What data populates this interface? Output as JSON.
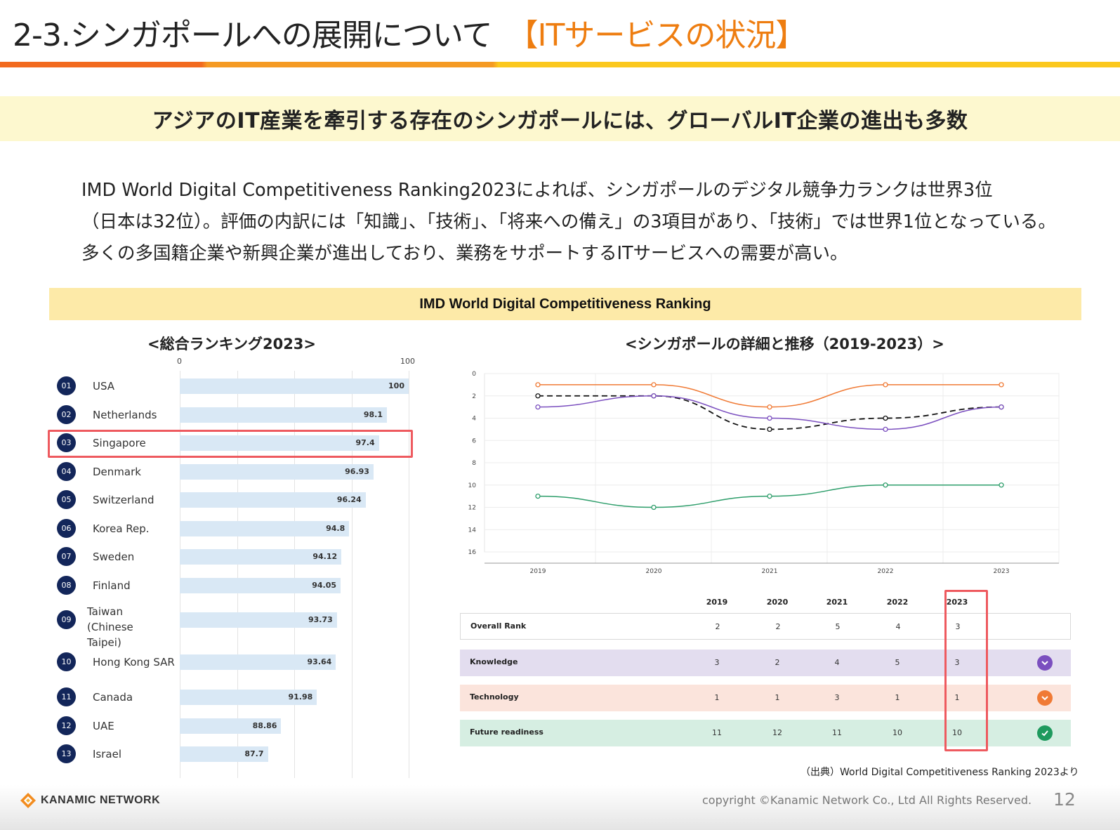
{
  "header": {
    "title": "2-3.シンガポールへの展開について",
    "title_accent": "【ITサービスの状況】"
  },
  "banner": {
    "text": "アジアのIT産業を牽引する存在のシンガポールには、グローバルIT企業の進出も多数"
  },
  "paragraph": {
    "lines": [
      "IMD World Digital Competitiveness Ranking2023によれば、シンガポールのデジタル競争力ランクは世界3位",
      "（日本は32位）。評価の内訳には「知識」、「技術」、「将来への備え」の3項目があり、「技術」では世界1位となっている。",
      "多くの多国籍企業や新興企業が進出しており、業務をサポートするITサービスへの需要が高い。"
    ]
  },
  "ranking_section": {
    "heading": "IMD World Digital Competitiveness Ranking",
    "left_title": "<総合ランキング2023>",
    "right_title": "<シンガポールの詳細と推移（2019-2023）>"
  },
  "chart_data": [
    {
      "type": "bar",
      "title": "<総合ランキング2023>",
      "xlim": [
        0,
        100
      ],
      "axis_labels": [
        "0",
        "100"
      ],
      "categories": [
        "USA",
        "Netherlands",
        "Singapore",
        "Denmark",
        "Switzerland",
        "Korea Rep.",
        "Sweden",
        "Finland",
        "Taiwan (Chinese Taipei)",
        "Hong Kong SAR",
        "Canada",
        "UAE",
        "Israel"
      ],
      "ranks": [
        "01",
        "02",
        "03",
        "04",
        "05",
        "06",
        "07",
        "08",
        "09",
        "10",
        "11",
        "12",
        "13"
      ],
      "values": [
        100,
        98.1,
        97.4,
        96.93,
        96.24,
        94.8,
        94.12,
        94.05,
        93.73,
        93.64,
        91.98,
        88.86,
        87.7
      ],
      "value_labels": [
        "100",
        "98.1",
        "97.4",
        "96.93",
        "96.24",
        "94.8",
        "94.12",
        "94.05",
        "93.73",
        "93.64",
        "91.98",
        "88.86",
        "87.7"
      ],
      "highlight": "Singapore"
    },
    {
      "type": "line",
      "title": "<シンガポールの詳細と推移（2019-2023）>",
      "x": [
        "2019",
        "2020",
        "2021",
        "2022",
        "2023"
      ],
      "ylim": [
        0,
        16
      ],
      "y_inverted": true,
      "y_ticks": [
        "0",
        "2",
        "4",
        "6",
        "8",
        "10",
        "12",
        "14",
        "16"
      ],
      "series": [
        {
          "name": "Overall Rank",
          "values": [
            2,
            2,
            5,
            4,
            3
          ],
          "color": "#111111",
          "dashed": true
        },
        {
          "name": "Knowledge",
          "values": [
            3,
            2,
            4,
            5,
            3
          ],
          "color": "#7b4fbf"
        },
        {
          "name": "Technology",
          "values": [
            1,
            1,
            3,
            1,
            1
          ],
          "color": "#f07a35"
        },
        {
          "name": "Future readiness",
          "values": [
            11,
            12,
            11,
            10,
            10
          ],
          "color": "#2e9e6b"
        }
      ]
    },
    {
      "type": "table",
      "columns": [
        "2019",
        "2020",
        "2021",
        "2022",
        "2023"
      ],
      "rows": [
        {
          "label": "Overall Rank",
          "values": [
            "2",
            "2",
            "5",
            "4",
            "3"
          ],
          "bg": "#ffffff",
          "icon": "",
          "icon_color": ""
        },
        {
          "label": "Knowledge",
          "values": [
            "3",
            "2",
            "4",
            "5",
            "3"
          ],
          "bg": "#e3ddef",
          "icon": "chevron-down-icon",
          "icon_color": "#7b4fbf"
        },
        {
          "label": "Technology",
          "values": [
            "1",
            "1",
            "3",
            "1",
            "1"
          ],
          "bg": "#fbe4dc",
          "icon": "chevron-down-icon",
          "icon_color": "#f07a35"
        },
        {
          "label": "Future readiness",
          "values": [
            "11",
            "12",
            "11",
            "10",
            "10"
          ],
          "bg": "#d6eee2",
          "icon": "check-icon",
          "icon_color": "#1f9a5e"
        }
      ],
      "highlight_column": "2023"
    }
  ],
  "source_note": "（出典）World Digital Competitiveness Ranking 2023より",
  "footer": {
    "logo_text": "KANAMIC NETWORK",
    "copyright": "copyright ©Kanamic Network Co., Ltd All Rights Reserved.",
    "page_number": "12"
  },
  "colors": {
    "accent": "#ee7d10",
    "highlight_border": "#ee5a5f",
    "rank_badge": "#13265a",
    "bar_fill": "#d9e8f5",
    "banner_bg": "#fdf8cf",
    "section_bar_bg": "#fdeaa8"
  }
}
